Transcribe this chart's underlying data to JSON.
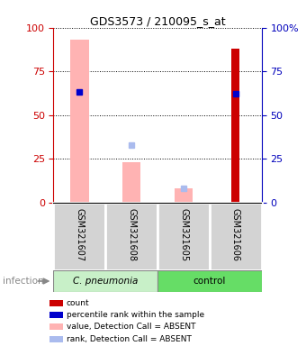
{
  "title": "GDS3573 / 210095_s_at",
  "samples": [
    "GSM321607",
    "GSM321608",
    "GSM321605",
    "GSM321606"
  ],
  "pink_bar_values": [
    93,
    23,
    8,
    0
  ],
  "red_bar_values": [
    0,
    0,
    0,
    88
  ],
  "blue_square_values": [
    63,
    0,
    0,
    62
  ],
  "light_blue_square_values": [
    0,
    33,
    8,
    0
  ],
  "pink_bar_color": "#FFB3B3",
  "red_bar_color": "#CC0000",
  "blue_square_color": "#0000CC",
  "light_blue_square_color": "#AABBEE",
  "left_axis_color": "#CC0000",
  "right_axis_color": "#0000BB",
  "ylim": [
    0,
    100
  ],
  "yticks": [
    0,
    25,
    50,
    75,
    100
  ],
  "cpneumonia_color": "#C8F0C8",
  "control_color": "#66DD66",
  "sample_area_color": "#D3D3D3",
  "legend_labels": [
    "count",
    "percentile rank within the sample",
    "value, Detection Call = ABSENT",
    "rank, Detection Call = ABSENT"
  ],
  "legend_colors": [
    "#CC0000",
    "#0000CC",
    "#FFB3B3",
    "#AABBEE"
  ],
  "infection_label": "infection",
  "bar_width": 0.35
}
